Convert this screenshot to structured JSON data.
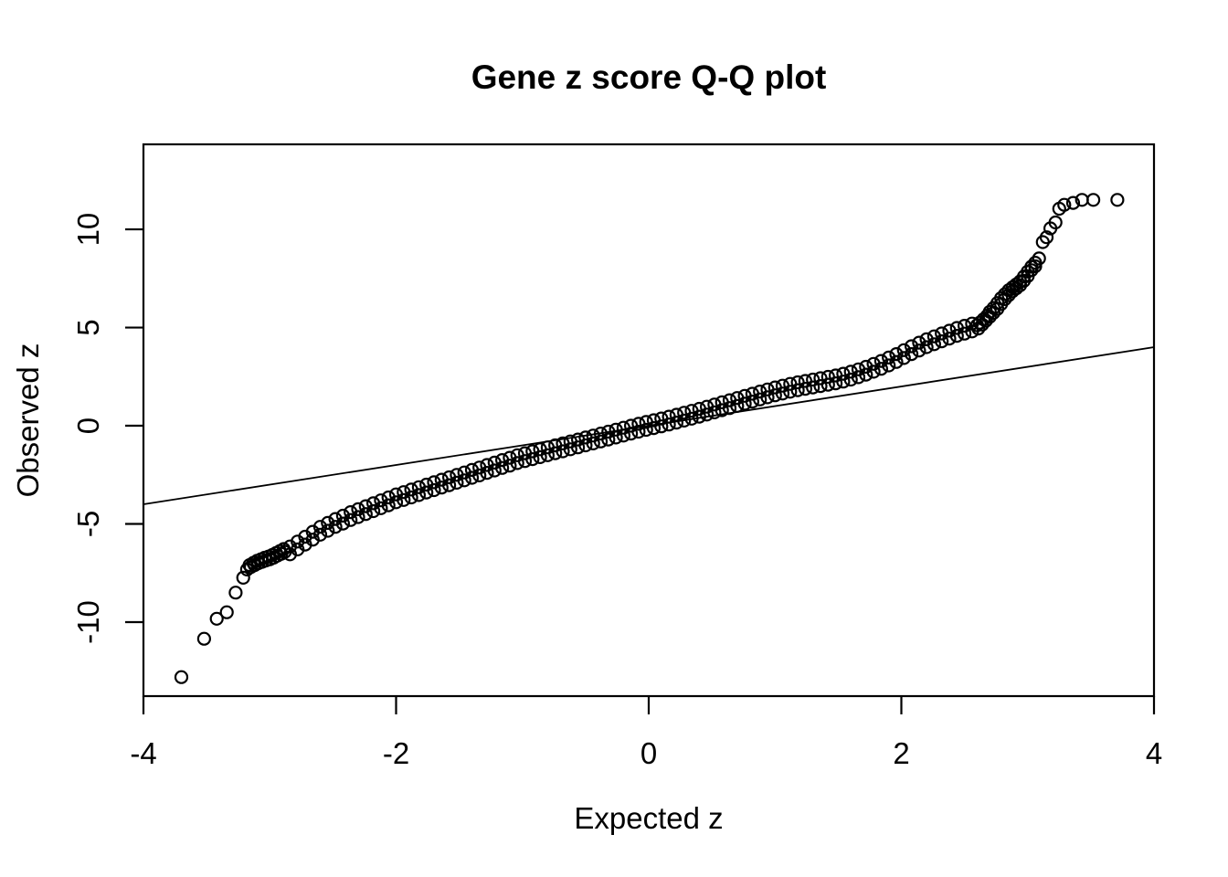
{
  "figure": {
    "background_color": "#ffffff",
    "foreground_color": "#000000"
  },
  "chart_data": {
    "type": "scatter",
    "title": "Gene z score Q-Q plot",
    "xlabel": "Expected z",
    "ylabel": "Observed z",
    "xlim": [
      -4,
      4
    ],
    "ylim": [
      -13.77,
      14.33
    ],
    "x_ticks": [
      -4,
      -2,
      0,
      2,
      4
    ],
    "x_tick_labels": [
      "-4",
      "-2",
      "0",
      "2",
      "4"
    ],
    "y_ticks": [
      -10,
      -5,
      0,
      5,
      10
    ],
    "y_tick_labels": [
      "-10",
      "-5",
      "0",
      "5",
      "10"
    ],
    "grid": false,
    "legend": null,
    "marker": "open-circle",
    "marker_color": "#000000",
    "reference_line": {
      "slope": 1,
      "intercept": 0,
      "x_start": -4,
      "x_end": 4
    },
    "points": [
      [
        -3.7,
        -12.8
      ],
      [
        -3.52,
        -10.85
      ],
      [
        -3.42,
        -9.83
      ],
      [
        -3.34,
        -9.5
      ],
      [
        -3.27,
        -8.5
      ],
      [
        -3.21,
        -7.74
      ],
      [
        -3.18,
        -7.32
      ],
      [
        -3.15,
        -7.2
      ],
      [
        -3.12,
        -7.1
      ],
      [
        -3.09,
        -7.0
      ],
      [
        -3.06,
        -6.93
      ],
      [
        -3.03,
        -6.86
      ],
      [
        -3.0,
        -6.8
      ],
      [
        -2.97,
        -6.72
      ],
      [
        -2.94,
        -6.62
      ],
      [
        -2.91,
        -6.52
      ],
      [
        -2.88,
        -6.42
      ],
      [
        -3.16,
        -7.1
      ],
      [
        -3.13,
        -6.98
      ],
      [
        -3.1,
        -6.88
      ],
      [
        -3.07,
        -6.8
      ],
      [
        -3.04,
        -6.72
      ],
      [
        -3.01,
        -6.66
      ],
      [
        -2.98,
        -6.58
      ],
      [
        -2.95,
        -6.48
      ],
      [
        -2.92,
        -6.38
      ],
      [
        -2.89,
        -6.28
      ],
      [
        -2.84,
        -6.15
      ],
      [
        -2.84,
        -6.55
      ],
      [
        -2.78,
        -5.9
      ],
      [
        -2.78,
        -6.3
      ],
      [
        -2.72,
        -5.65
      ],
      [
        -2.72,
        -6.05
      ],
      [
        -2.66,
        -5.4
      ],
      [
        -2.66,
        -5.8
      ],
      [
        -2.6,
        -5.15
      ],
      [
        -2.6,
        -5.55
      ],
      [
        -2.54,
        -4.95
      ],
      [
        -2.54,
        -5.35
      ],
      [
        -2.48,
        -4.75
      ],
      [
        -2.48,
        -5.15
      ],
      [
        -2.42,
        -4.58
      ],
      [
        -2.42,
        -4.98
      ],
      [
        -2.36,
        -4.4
      ],
      [
        -2.36,
        -4.8
      ],
      [
        -2.3,
        -4.25
      ],
      [
        -2.3,
        -4.65
      ],
      [
        -2.24,
        -4.1
      ],
      [
        -2.24,
        -4.5
      ],
      [
        -2.18,
        -3.95
      ],
      [
        -2.18,
        -4.35
      ],
      [
        -2.12,
        -3.8
      ],
      [
        -2.12,
        -4.2
      ],
      [
        -2.06,
        -3.65
      ],
      [
        -2.06,
        -4.05
      ],
      [
        -2.0,
        -3.5
      ],
      [
        -2.0,
        -3.9
      ],
      [
        -1.94,
        -3.38
      ],
      [
        -1.94,
        -3.78
      ],
      [
        -1.88,
        -3.25
      ],
      [
        -1.88,
        -3.65
      ],
      [
        -1.82,
        -3.13
      ],
      [
        -1.82,
        -3.53
      ],
      [
        -1.76,
        -3.0
      ],
      [
        -1.76,
        -3.4
      ],
      [
        -1.7,
        -2.88
      ],
      [
        -1.7,
        -3.28
      ],
      [
        -1.64,
        -2.75
      ],
      [
        -1.64,
        -3.15
      ],
      [
        -1.58,
        -2.63
      ],
      [
        -1.58,
        -3.03
      ],
      [
        -1.52,
        -2.5
      ],
      [
        -1.52,
        -2.9
      ],
      [
        -1.46,
        -2.38
      ],
      [
        -1.46,
        -2.78
      ],
      [
        -1.4,
        -2.25
      ],
      [
        -1.4,
        -2.65
      ],
      [
        -1.34,
        -2.13
      ],
      [
        -1.34,
        -2.53
      ],
      [
        -1.28,
        -2.0
      ],
      [
        -1.28,
        -2.4
      ],
      [
        -1.22,
        -1.88
      ],
      [
        -1.22,
        -2.28
      ],
      [
        -1.16,
        -1.75
      ],
      [
        -1.16,
        -2.15
      ],
      [
        -1.1,
        -1.63
      ],
      [
        -1.1,
        -2.03
      ],
      [
        -1.04,
        -1.5
      ],
      [
        -1.04,
        -1.9
      ],
      [
        -0.98,
        -1.4
      ],
      [
        -0.98,
        -1.8
      ],
      [
        -0.92,
        -1.3
      ],
      [
        -0.92,
        -1.7
      ],
      [
        -0.86,
        -1.2
      ],
      [
        -0.86,
        -1.6
      ],
      [
        -0.8,
        -1.1
      ],
      [
        -0.8,
        -1.5
      ],
      [
        -0.74,
        -1.0
      ],
      [
        -0.74,
        -1.4
      ],
      [
        -0.68,
        -0.9
      ],
      [
        -0.68,
        -1.3
      ],
      [
        -0.62,
        -0.8
      ],
      [
        -0.62,
        -1.2
      ],
      [
        -0.56,
        -0.7
      ],
      [
        -0.56,
        -1.1
      ],
      [
        -0.5,
        -0.6
      ],
      [
        -0.5,
        -1.0
      ],
      [
        -0.44,
        -0.5
      ],
      [
        -0.44,
        -0.9
      ],
      [
        -0.38,
        -0.4
      ],
      [
        -0.38,
        -0.8
      ],
      [
        -0.32,
        -0.3
      ],
      [
        -0.32,
        -0.7
      ],
      [
        -0.26,
        -0.2
      ],
      [
        -0.26,
        -0.6
      ],
      [
        -0.2,
        -0.1
      ],
      [
        -0.2,
        -0.5
      ],
      [
        -0.14,
        0.0
      ],
      [
        -0.14,
        -0.4
      ],
      [
        -0.08,
        0.1
      ],
      [
        -0.08,
        -0.3
      ],
      [
        -0.02,
        0.19
      ],
      [
        -0.02,
        -0.21
      ],
      [
        0.04,
        0.28
      ],
      [
        0.04,
        -0.12
      ],
      [
        0.1,
        0.37
      ],
      [
        0.1,
        -0.03
      ],
      [
        0.16,
        0.46
      ],
      [
        0.16,
        0.06
      ],
      [
        0.22,
        0.56
      ],
      [
        0.22,
        0.16
      ],
      [
        0.28,
        0.66
      ],
      [
        0.28,
        0.26
      ],
      [
        0.34,
        0.76
      ],
      [
        0.34,
        0.36
      ],
      [
        0.4,
        0.86
      ],
      [
        0.4,
        0.46
      ],
      [
        0.46,
        0.97
      ],
      [
        0.46,
        0.57
      ],
      [
        0.52,
        1.08
      ],
      [
        0.52,
        0.68
      ],
      [
        0.58,
        1.19
      ],
      [
        0.58,
        0.79
      ],
      [
        0.64,
        1.3
      ],
      [
        0.64,
        0.9
      ],
      [
        0.7,
        1.41
      ],
      [
        0.7,
        1.01
      ],
      [
        0.76,
        1.52
      ],
      [
        0.76,
        1.12
      ],
      [
        0.82,
        1.63
      ],
      [
        0.82,
        1.23
      ],
      [
        0.88,
        1.74
      ],
      [
        0.88,
        1.34
      ],
      [
        0.94,
        1.85
      ],
      [
        0.94,
        1.45
      ],
      [
        1.0,
        1.95
      ],
      [
        1.0,
        1.55
      ],
      [
        1.06,
        2.04
      ],
      [
        1.06,
        1.64
      ],
      [
        1.12,
        2.13
      ],
      [
        1.12,
        1.73
      ],
      [
        1.18,
        2.21
      ],
      [
        1.18,
        1.81
      ],
      [
        1.24,
        2.28
      ],
      [
        1.24,
        1.88
      ],
      [
        1.3,
        2.35
      ],
      [
        1.3,
        1.95
      ],
      [
        1.36,
        2.42
      ],
      [
        1.36,
        2.02
      ],
      [
        1.42,
        2.49
      ],
      [
        1.42,
        2.09
      ],
      [
        1.48,
        2.56
      ],
      [
        1.48,
        2.16
      ],
      [
        1.54,
        2.65
      ],
      [
        1.54,
        2.25
      ],
      [
        1.6,
        2.75
      ],
      [
        1.6,
        2.35
      ],
      [
        1.66,
        2.87
      ],
      [
        1.66,
        2.47
      ],
      [
        1.72,
        3.0
      ],
      [
        1.72,
        2.6
      ],
      [
        1.78,
        3.15
      ],
      [
        1.78,
        2.75
      ],
      [
        1.84,
        3.3
      ],
      [
        1.84,
        2.9
      ],
      [
        1.9,
        3.47
      ],
      [
        1.9,
        3.07
      ],
      [
        1.96,
        3.65
      ],
      [
        1.96,
        3.25
      ],
      [
        2.02,
        3.85
      ],
      [
        2.02,
        3.45
      ],
      [
        2.08,
        4.05
      ],
      [
        2.08,
        3.65
      ],
      [
        2.14,
        4.23
      ],
      [
        2.14,
        3.83
      ],
      [
        2.2,
        4.4
      ],
      [
        2.2,
        4.0
      ],
      [
        2.26,
        4.55
      ],
      [
        2.26,
        4.15
      ],
      [
        2.32,
        4.7
      ],
      [
        2.32,
        4.3
      ],
      [
        2.38,
        4.84
      ],
      [
        2.38,
        4.44
      ],
      [
        2.44,
        4.98
      ],
      [
        2.44,
        4.58
      ],
      [
        2.5,
        5.09
      ],
      [
        2.5,
        4.69
      ],
      [
        2.56,
        5.2
      ],
      [
        2.56,
        4.8
      ],
      [
        2.6,
        5.12
      ],
      [
        2.62,
        5.25
      ],
      [
        2.65,
        5.42
      ],
      [
        2.68,
        5.6
      ],
      [
        2.7,
        5.8
      ],
      [
        2.73,
        6.0
      ],
      [
        2.76,
        6.25
      ],
      [
        2.79,
        6.5
      ],
      [
        2.82,
        6.7
      ],
      [
        2.85,
        6.9
      ],
      [
        2.88,
        7.05
      ],
      [
        2.91,
        7.2
      ],
      [
        2.94,
        7.35
      ],
      [
        2.97,
        7.6
      ],
      [
        3.0,
        7.85
      ],
      [
        3.03,
        8.1
      ],
      [
        3.06,
        8.3
      ],
      [
        3.09,
        8.52
      ],
      [
        2.61,
        4.95
      ],
      [
        2.64,
        5.15
      ],
      [
        2.67,
        5.35
      ],
      [
        2.7,
        5.55
      ],
      [
        2.73,
        5.75
      ],
      [
        2.76,
        5.95
      ],
      [
        2.79,
        6.2
      ],
      [
        2.82,
        6.45
      ],
      [
        2.85,
        6.65
      ],
      [
        2.88,
        6.85
      ],
      [
        2.91,
        7.0
      ],
      [
        2.94,
        7.15
      ],
      [
        2.97,
        7.38
      ],
      [
        3.0,
        7.62
      ],
      [
        3.03,
        7.92
      ],
      [
        3.06,
        8.12
      ],
      [
        3.12,
        9.35
      ],
      [
        3.15,
        9.6
      ],
      [
        3.18,
        10.05
      ],
      [
        3.22,
        10.35
      ],
      [
        3.25,
        11.05
      ],
      [
        3.29,
        11.25
      ],
      [
        3.36,
        11.35
      ],
      [
        3.43,
        11.5
      ],
      [
        3.52,
        11.5
      ],
      [
        3.71,
        11.5
      ]
    ]
  }
}
